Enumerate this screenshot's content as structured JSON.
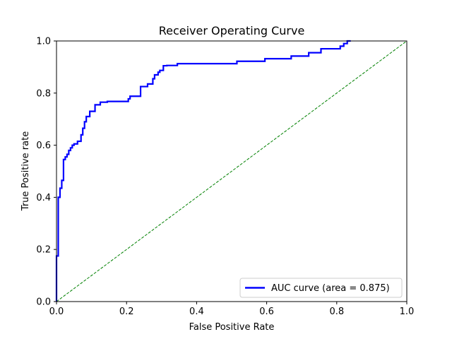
{
  "chart_data": {
    "type": "line",
    "title": "Receiver Operating Curve",
    "xlabel": "False Positive Rate",
    "ylabel": "True Positive rate",
    "xlim": [
      0,
      1
    ],
    "ylim": [
      0,
      1
    ],
    "xticks": [
      "0.0",
      "0.2",
      "0.4",
      "0.6",
      "0.8",
      "1.0"
    ],
    "yticks": [
      "0.0",
      "0.2",
      "0.4",
      "0.6",
      "0.8",
      "1.0"
    ],
    "grid": false,
    "legend_position": "lower-right",
    "series": [
      {
        "name": "AUC curve (area = 0.875)",
        "color": "#0000ff",
        "style": "solid",
        "x": [
          0.0,
          0.0,
          0.005,
          0.005,
          0.01,
          0.01,
          0.015,
          0.015,
          0.02,
          0.02,
          0.025,
          0.025,
          0.03,
          0.03,
          0.035,
          0.035,
          0.04,
          0.04,
          0.045,
          0.045,
          0.05,
          0.05,
          0.06,
          0.06,
          0.07,
          0.07,
          0.075,
          0.075,
          0.08,
          0.08,
          0.085,
          0.085,
          0.095,
          0.095,
          0.11,
          0.11,
          0.125,
          0.125,
          0.145,
          0.145,
          0.205,
          0.205,
          0.21,
          0.21,
          0.24,
          0.24,
          0.26,
          0.26,
          0.275,
          0.275,
          0.28,
          0.28,
          0.29,
          0.29,
          0.295,
          0.295,
          0.305,
          0.305,
          0.315,
          0.315,
          0.345,
          0.345,
          0.515,
          0.515,
          0.595,
          0.595,
          0.67,
          0.67,
          0.72,
          0.72,
          0.755,
          0.755,
          0.81,
          0.81,
          0.82,
          0.82,
          0.83,
          0.83,
          0.84
        ],
        "y": [
          0.0,
          0.175,
          0.175,
          0.4,
          0.4,
          0.435,
          0.435,
          0.465,
          0.465,
          0.545,
          0.545,
          0.555,
          0.555,
          0.565,
          0.565,
          0.58,
          0.58,
          0.59,
          0.59,
          0.6,
          0.6,
          0.605,
          0.605,
          0.615,
          0.615,
          0.64,
          0.64,
          0.665,
          0.665,
          0.69,
          0.69,
          0.71,
          0.71,
          0.73,
          0.73,
          0.755,
          0.755,
          0.765,
          0.765,
          0.768,
          0.768,
          0.778,
          0.778,
          0.788,
          0.788,
          0.825,
          0.825,
          0.835,
          0.835,
          0.855,
          0.855,
          0.87,
          0.87,
          0.88,
          0.88,
          0.887,
          0.887,
          0.905,
          0.905,
          0.906,
          0.906,
          0.913,
          0.913,
          0.922,
          0.922,
          0.932,
          0.932,
          0.942,
          0.942,
          0.955,
          0.955,
          0.97,
          0.97,
          0.98,
          0.98,
          0.99,
          0.99,
          1.0,
          1.0
        ]
      },
      {
        "name": "",
        "color": "#008000",
        "style": "dashed",
        "x": [
          0,
          1
        ],
        "y": [
          0,
          1
        ]
      }
    ]
  }
}
